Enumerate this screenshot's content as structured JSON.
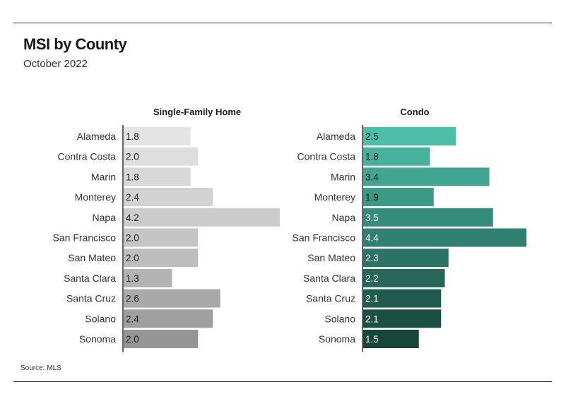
{
  "header": {
    "title": "MSI by County",
    "subtitle": "October 2022"
  },
  "footer": {
    "source": "Source: MLS"
  },
  "chart_data": [
    {
      "type": "bar",
      "orientation": "horizontal",
      "title": "Single-Family Home",
      "categories": [
        "Alameda",
        "Contra Costa",
        "Marin",
        "Monterey",
        "Napa",
        "San Francisco",
        "San Mateo",
        "Santa Clara",
        "Santa Cruz",
        "Solano",
        "Sonoma"
      ],
      "values": [
        1.8,
        2.0,
        1.8,
        2.4,
        4.2,
        2.0,
        2.0,
        1.3,
        2.6,
        2.4,
        2.0
      ],
      "labels": [
        "1.8",
        "2.0",
        "1.8",
        "2.4",
        "4.2",
        "2.0",
        "2.0",
        "1.3",
        "2.6",
        "2.4",
        "2.0"
      ],
      "xlim": [
        0,
        4.2
      ],
      "colors": [
        "#e4e4e4",
        "#dedede",
        "#d8d8d8",
        "#d2d2d2",
        "#cccccc",
        "#c5c5c5",
        "#bdbdbd",
        "#b3b3b3",
        "#a9a9a9",
        "#9f9f9f",
        "#959595"
      ],
      "label_color": "#222222"
    },
    {
      "type": "bar",
      "orientation": "horizontal",
      "title": "Condo",
      "categories": [
        "Alameda",
        "Contra Costa",
        "Marin",
        "Monterey",
        "Napa",
        "San Francisco",
        "San Mateo",
        "Santa Clara",
        "Santa Cruz",
        "Solano",
        "Sonoma"
      ],
      "values": [
        2.5,
        1.8,
        3.4,
        1.9,
        3.5,
        4.4,
        2.3,
        2.2,
        2.1,
        2.1,
        1.5
      ],
      "labels": [
        "2.5",
        "1.8",
        "3.4",
        "1.9",
        "3.5",
        "4.4",
        "2.3",
        "2.2",
        "2.1",
        "2.1",
        "1.5"
      ],
      "xlim": [
        0,
        4.4
      ],
      "colors": [
        "#4dbfa8",
        "#47b29c",
        "#42a591",
        "#3c9985",
        "#368c7a",
        "#31806f",
        "#2b7364",
        "#266759",
        "#205b4e",
        "#1b4f44",
        "#16453a"
      ],
      "label_color": "#1a1a1a",
      "label_color_dark": "#ffffff"
    }
  ]
}
